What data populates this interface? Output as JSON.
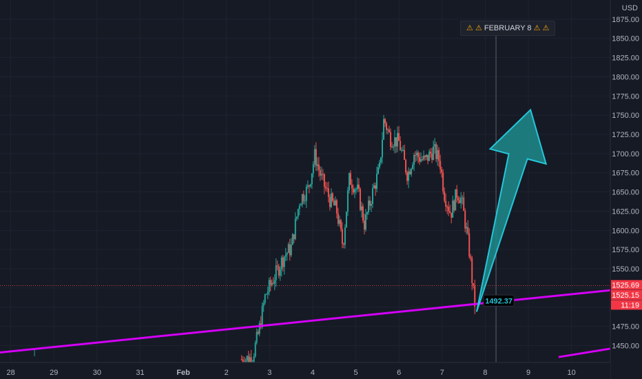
{
  "header": {
    "currency": "USD"
  },
  "event_marker": {
    "icon": "warning-icon",
    "label": "FEBRUARY 8"
  },
  "colors": {
    "background": "#161a25",
    "up": "#26a69a",
    "down": "#ef5350",
    "trendline": "#d500f9",
    "arrow_fill": "#1e8c8c",
    "arrow_stroke": "#26c6da",
    "price_label": "#f23645"
  },
  "chart_data": {
    "type": "candlestick",
    "y_axis": {
      "ticks": [
        1450,
        1475,
        1500,
        1525,
        1550,
        1575,
        1600,
        1625,
        1650,
        1675,
        1700,
        1725,
        1750,
        1775,
        1800,
        1825,
        1850,
        1875
      ],
      "tick_labels": [
        "1450.00",
        "1475.00",
        "",
        "",
        "1550.00",
        "1575.00",
        "1600.00",
        "1625.00",
        "1650.00",
        "1675.00",
        "1700.00",
        "1725.00",
        "1750.00",
        "1775.00",
        "1800.00",
        "1825.00",
        "1850.00",
        "1875.00"
      ],
      "range": [
        1428,
        1900
      ]
    },
    "x_axis": {
      "labels": [
        "28",
        "29",
        "30",
        "31",
        "Feb",
        "2",
        "3",
        "4",
        "5",
        "6",
        "7",
        "8",
        "9",
        "10"
      ],
      "label_days": [
        -4,
        -3,
        -2,
        -1,
        0,
        1,
        2,
        3,
        4,
        5,
        6,
        7,
        8,
        9
      ],
      "range_days": [
        -4.25,
        9.9
      ]
    },
    "price_path": [
      {
        "day": 1.35,
        "price": 1432
      },
      {
        "day": 1.6,
        "price": 1434
      },
      {
        "day": 1.75,
        "price": 1468
      },
      {
        "day": 1.9,
        "price": 1515
      },
      {
        "day": 2.1,
        "price": 1538
      },
      {
        "day": 2.35,
        "price": 1568
      },
      {
        "day": 2.5,
        "price": 1577
      },
      {
        "day": 2.7,
        "price": 1640
      },
      {
        "day": 2.9,
        "price": 1655
      },
      {
        "day": 3.05,
        "price": 1698
      },
      {
        "day": 3.2,
        "price": 1668
      },
      {
        "day": 3.4,
        "price": 1640
      },
      {
        "day": 3.55,
        "price": 1627
      },
      {
        "day": 3.7,
        "price": 1580
      },
      {
        "day": 3.85,
        "price": 1668
      },
      {
        "day": 4.05,
        "price": 1650
      },
      {
        "day": 4.2,
        "price": 1608
      },
      {
        "day": 4.4,
        "price": 1652
      },
      {
        "day": 4.55,
        "price": 1680
      },
      {
        "day": 4.65,
        "price": 1745
      },
      {
        "day": 4.8,
        "price": 1720
      },
      {
        "day": 5.0,
        "price": 1715
      },
      {
        "day": 5.2,
        "price": 1672
      },
      {
        "day": 5.35,
        "price": 1700
      },
      {
        "day": 5.6,
        "price": 1690
      },
      {
        "day": 5.8,
        "price": 1705
      },
      {
        "day": 5.95,
        "price": 1690
      },
      {
        "day": 6.05,
        "price": 1648
      },
      {
        "day": 6.2,
        "price": 1622
      },
      {
        "day": 6.35,
        "price": 1650
      },
      {
        "day": 6.45,
        "price": 1640
      },
      {
        "day": 6.55,
        "price": 1605
      },
      {
        "day": 6.65,
        "price": 1565
      },
      {
        "day": 6.72,
        "price": 1520
      },
      {
        "day": 6.78,
        "price": 1496
      }
    ],
    "trendline": [
      {
        "day": -4.25,
        "price": 1441
      },
      {
        "day": 9.9,
        "price": 1522
      }
    ],
    "lower_trendline": [
      {
        "day": 8.7,
        "price": 1435
      },
      {
        "day": 9.9,
        "price": 1446
      }
    ],
    "horizontal_line": {
      "price": 1528,
      "style": "dotted"
    },
    "arrow": {
      "from_day": 6.8,
      "from_price": 1494,
      "to_day": 8.05,
      "to_price": 1757
    },
    "point_label": {
      "day": 6.9,
      "price": 1492.37,
      "text": "1492.37"
    },
    "vertical_marker_day": 7.25,
    "price_labels": [
      {
        "text": "1525.69",
        "price": 1529
      },
      {
        "text": "1525.15",
        "price": 1516
      },
      {
        "text": "11:19",
        "price": 1503
      }
    ]
  }
}
